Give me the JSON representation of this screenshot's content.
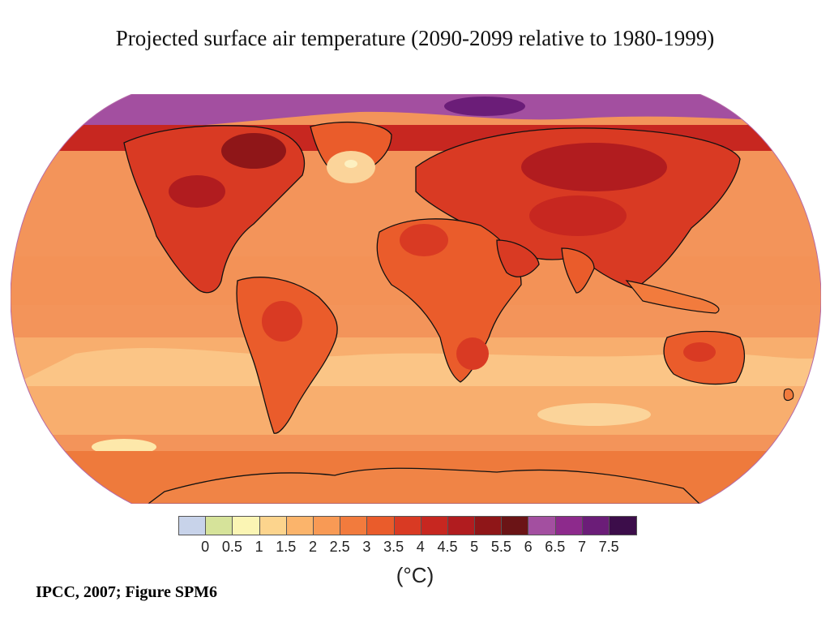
{
  "title": "Projected surface air temperature (2090-2099 relative to 1980-1999)",
  "legend": {
    "colors": [
      "#c8d3ea",
      "#d6e39a",
      "#fbf5b4",
      "#fcd48d",
      "#fbb46b",
      "#f89a55",
      "#f27b3d",
      "#ea5c2b",
      "#d93a23",
      "#c72720",
      "#b11c1f",
      "#8f1618",
      "#6b1416",
      "#a34fa0",
      "#8d2a8c",
      "#6b1d78",
      "#3c0d4a"
    ],
    "ticks": [
      "0",
      "0.5",
      "1",
      "1.5",
      "2",
      "2.5",
      "3",
      "3.5",
      "4",
      "4.5",
      "5",
      "5.5",
      "6",
      "6.5",
      "7",
      "7.5"
    ],
    "unit": "(°C)"
  },
  "source": "IPCC, 2007; Figure SPM6",
  "map": {
    "projection": "Robinson",
    "ocean_color": "#f3945a",
    "land_outline_color": "#111111"
  }
}
